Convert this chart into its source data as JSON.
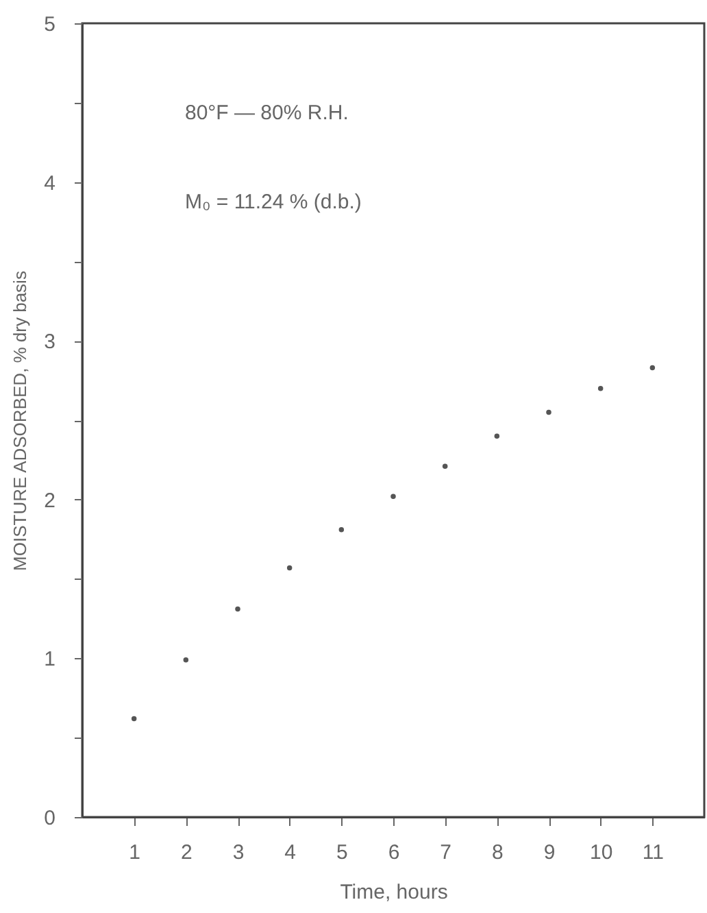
{
  "chart_data": {
    "type": "scatter",
    "xlabel": "Time, hours",
    "ylabel": "MOISTURE ADSORBED, % dry basis",
    "annotations": [
      "80°F — 80% R.H.",
      "M₀ = 11.24 % (d.b.)"
    ],
    "x": [
      1,
      2,
      3,
      4,
      5,
      6,
      7,
      8,
      9,
      10,
      11
    ],
    "series": [
      {
        "color": "#555555",
        "values": [
          0.62,
          0.99,
          1.31,
          1.57,
          1.81,
          2.02,
          2.21,
          2.4,
          2.55,
          2.7,
          2.83
        ]
      }
    ],
    "xlim": [
      0,
      12
    ],
    "xticks": [
      1,
      2,
      3,
      4,
      5,
      6,
      7,
      8,
      9,
      10,
      11
    ],
    "ylim": [
      0,
      5
    ],
    "yticks": [
      0,
      {
        "value": 0.5,
        "label": null
      },
      1,
      {
        "value": 1.5,
        "label": null
      },
      2,
      {
        "value": 2.5,
        "label": null
      },
      3,
      {
        "value": 3.5,
        "label": null
      },
      4,
      {
        "value": 4.5,
        "label": null
      },
      5
    ],
    "marker": "circle",
    "grid": false
  }
}
